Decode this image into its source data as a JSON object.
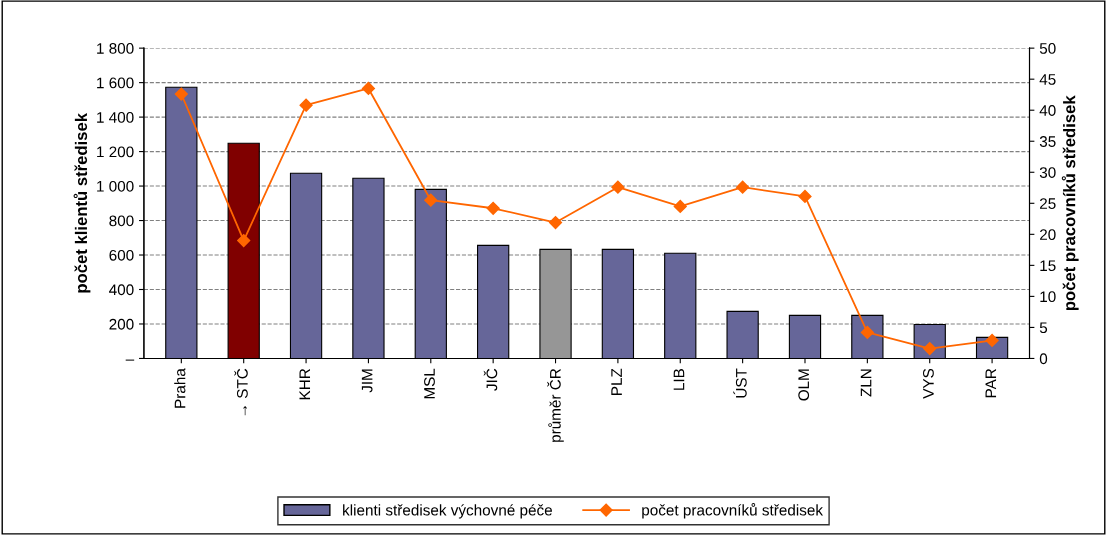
{
  "chart_data": {
    "type": "bar",
    "ylabel": "počet klientů středisek",
    "y2label": "počet pracovníků středisek",
    "categories": [
      "Praha",
      "→ STČ",
      "KHR",
      "JIM",
      "MSL",
      "JIČ",
      "průměr ČR",
      "PLZ",
      "LIB",
      "ÚST",
      "OLM",
      "ZLN",
      "VYS",
      "PAR"
    ],
    "series": [
      {
        "name": "klienti středisek výchovné péče",
        "color": "#666699",
        "colors": [
          "#666699",
          "#800000",
          "#666699",
          "#666699",
          "#666699",
          "#666699",
          "#969696",
          "#666699",
          "#666699",
          "#666699",
          "#666699",
          "#666699",
          "#666699",
          "#666699"
        ],
        "values": [
          1573,
          1248,
          1074,
          1045,
          981,
          656,
          633,
          633,
          610,
          273,
          250,
          250,
          197,
          122
        ]
      },
      {
        "name": "počet pracovníků středisek",
        "type": "line",
        "axis": "y2",
        "color": "#ff6600",
        "marker": "diamond",
        "values": [
          42.6,
          19.0,
          40.8,
          43.5,
          25.5,
          24.2,
          21.9,
          27.6,
          24.5,
          27.6,
          26.1,
          4.2,
          1.6,
          2.9
        ]
      }
    ],
    "ylim": [
      0,
      1800
    ],
    "yticks": [
      {
        "value": 0,
        "label": "–"
      },
      {
        "value": 200,
        "label": "200"
      },
      {
        "value": 400,
        "label": "400"
      },
      {
        "value": 600,
        "label": "600"
      },
      {
        "value": 800,
        "label": "800"
      },
      {
        "value": 1000,
        "label": "1 000"
      },
      {
        "value": 1200,
        "label": "1 200"
      },
      {
        "value": 1400,
        "label": "1 400"
      },
      {
        "value": 1600,
        "label": "1 600"
      },
      {
        "value": 1800,
        "label": "1 800"
      }
    ],
    "y2lim": [
      0,
      50
    ],
    "y2ticks": [
      0,
      5,
      10,
      15,
      20,
      25,
      30,
      35,
      40,
      45,
      50
    ],
    "grid": "y",
    "legend": "bottom"
  }
}
